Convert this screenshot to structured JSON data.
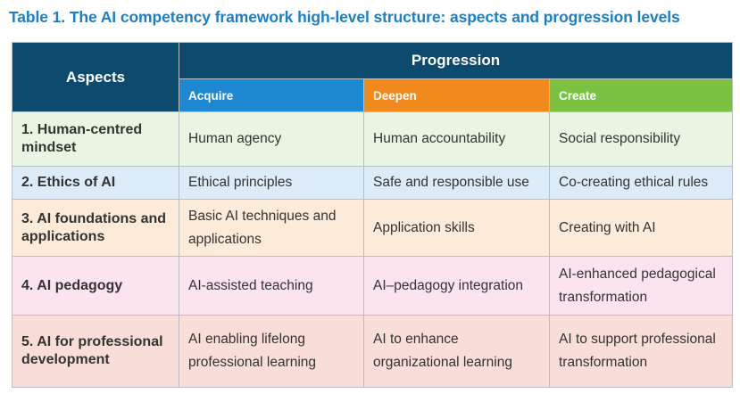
{
  "caption": "Table 1. The AI competency framework high-level structure: aspects and progression levels",
  "table": {
    "header": {
      "aspects": "Aspects",
      "progression": "Progression",
      "levels": [
        "Acquire",
        "Deepen",
        "Create"
      ]
    },
    "rows": [
      {
        "aspect": "1. Human-centred mindset",
        "cells": [
          "Human agency",
          "Human accountability",
          "Social responsibility"
        ]
      },
      {
        "aspect": "2. Ethics of AI",
        "cells": [
          "Ethical principles",
          "Safe and responsible use",
          "Co-creating ethical rules"
        ]
      },
      {
        "aspect": "3. AI foundations and applications",
        "cells": [
          "Basic AI techniques and applications",
          "Application skills",
          "Creating with AI"
        ]
      },
      {
        "aspect": "4. AI pedagogy",
        "cells": [
          "AI-assisted teaching",
          "AI–pedagogy integration",
          "AI-enhanced pedagogical transformation"
        ]
      },
      {
        "aspect": "5. AI for professional development",
        "cells": [
          "AI enabling lifelong professional learning",
          "AI to enhance organizational learning",
          "AI to support professional transformation"
        ]
      }
    ]
  },
  "colors": {
    "caption": "#1f7ec1",
    "header_dark": "#0c4a6e",
    "acquire": "#1e88d2",
    "deepen": "#f08a1c",
    "create": "#7cc242",
    "row1": "#e9f4e2",
    "row2": "#dcebf7",
    "row3": "#fcebd8",
    "row4": "#fbe4ef",
    "row5": "#f8ddd8"
  }
}
